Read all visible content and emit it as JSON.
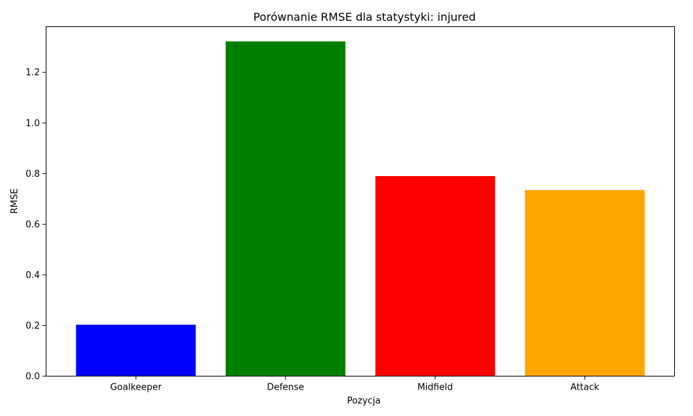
{
  "chart_data": {
    "type": "bar",
    "title": "Porównanie RMSE dla statystyki: injured",
    "xlabel": "Pozycja",
    "ylabel": "RMSE",
    "categories": [
      "Goalkeeper",
      "Defense",
      "Midfield",
      "Attack"
    ],
    "values": [
      0.203,
      1.322,
      0.79,
      0.735
    ],
    "colors": [
      "#0000ff",
      "#008000",
      "#ff0000",
      "#ffa500"
    ],
    "ylim": [
      0,
      1.38
    ],
    "yticks": [
      0.0,
      0.2,
      0.4,
      0.6,
      0.8,
      1.0,
      1.2
    ],
    "ytick_labels": [
      "0.0",
      "0.2",
      "0.4",
      "0.6",
      "0.8",
      "1.0",
      "1.2"
    ],
    "grid": false,
    "legend": false
  }
}
